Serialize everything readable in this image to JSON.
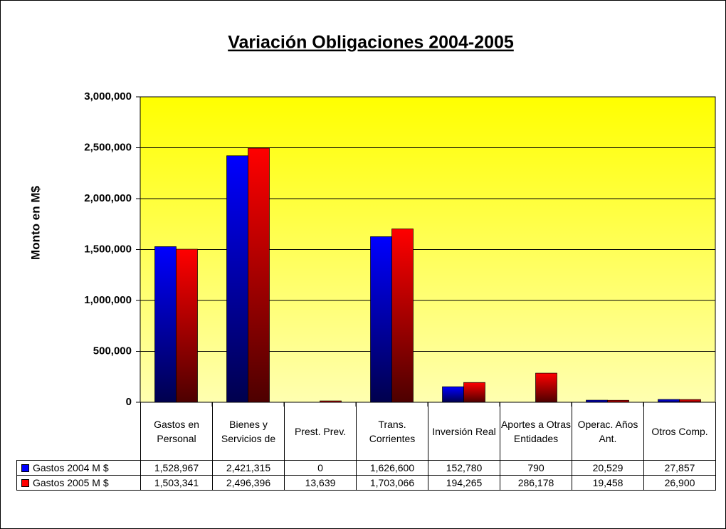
{
  "chart_data": {
    "type": "bar",
    "title": "Variación Obligaciones 2004-2005",
    "y_label": "Monto en M$",
    "categories": [
      "Gastos en Personal",
      "Bienes y Servicios de",
      "Prest. Prev.",
      "Trans. Corrientes",
      "Inversión Real",
      "Aportes a Otras Entidades",
      "Operac. Años Ant.",
      "Otros Comp."
    ],
    "series": [
      {
        "name": "Gastos 2004 M $",
        "color": "#0000ff",
        "values": [
          1528967,
          2421315,
          0,
          1626600,
          152780,
          790,
          20529,
          27857
        ],
        "value_labels": [
          "1,528,967",
          "2,421,315",
          "0",
          "1,626,600",
          "152,780",
          "790",
          "20,529",
          "27,857"
        ]
      },
      {
        "name": "Gastos 2005 M $",
        "color": "#ff0000",
        "values": [
          1503341,
          2496396,
          13639,
          1703066,
          194265,
          286178,
          19458,
          26900
        ],
        "value_labels": [
          "1,503,341",
          "2,496,396",
          "13,639",
          "1,703,066",
          "194,265",
          "286,178",
          "19,458",
          "26,900"
        ]
      }
    ],
    "ylim": [
      0,
      3000000
    ],
    "yticks": [
      {
        "value": 0,
        "label": "0"
      },
      {
        "value": 500000,
        "label": "500,000"
      },
      {
        "value": 1000000,
        "label": "1,000,000"
      },
      {
        "value": 1500000,
        "label": "1,500,000"
      },
      {
        "value": 2000000,
        "label": "2,000,000"
      },
      {
        "value": 2500000,
        "label": "2,500,000"
      },
      {
        "value": 3000000,
        "label": "3,000,000"
      }
    ],
    "grid": true
  }
}
